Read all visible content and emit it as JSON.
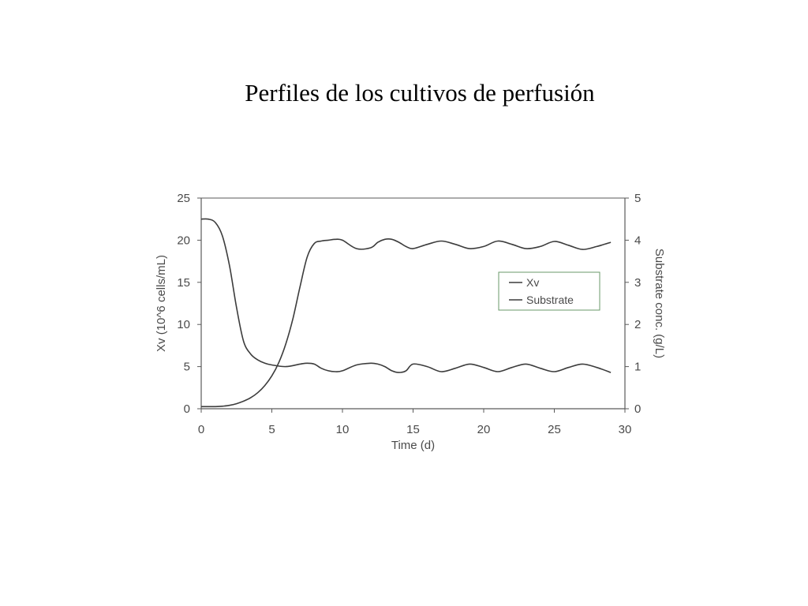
{
  "slide": {
    "title": "Perfiles de los cultivos de perfusión"
  },
  "colors": {
    "axis": "#5a5a5a",
    "series": "#3c3c3c",
    "text": "#4a4a4a",
    "legend_border": "#6a9a6a"
  },
  "chart_data": {
    "type": "line",
    "xlabel": "Time (d)",
    "ylabel_left": "Xv (10^6 cells/mL)",
    "ylabel_right": "Substrate conc. (g/L)",
    "xlim": [
      0,
      30
    ],
    "ylim_left": [
      0,
      25
    ],
    "ylim_right": [
      0,
      5
    ],
    "x_ticks": [
      "0",
      "5",
      "10",
      "15",
      "20",
      "25",
      "30"
    ],
    "y_left_ticks": [
      "0",
      "5",
      "10",
      "15",
      "20",
      "25"
    ],
    "y_right_ticks": [
      "0",
      "1",
      "2",
      "3",
      "4",
      "5"
    ],
    "grid": false,
    "legend_position": "upper-right",
    "series": [
      {
        "name": "Xv",
        "axis": "left",
        "x": [
          0,
          0.5,
          1,
          1.5,
          2,
          2.5,
          3,
          3.5,
          4,
          4.5,
          5,
          6,
          7,
          7.5,
          8,
          8.5,
          9,
          9.5,
          10,
          11,
          12,
          12.5,
          13,
          13.5,
          14,
          14.5,
          15,
          16,
          17,
          18,
          19,
          20,
          21,
          22,
          23,
          24,
          25,
          26,
          27,
          28,
          29
        ],
        "values": [
          22.5,
          22.5,
          22.1,
          20.5,
          17.0,
          12.0,
          8.0,
          6.5,
          5.8,
          5.4,
          5.2,
          5.0,
          5.3,
          5.4,
          5.3,
          4.8,
          4.5,
          4.4,
          4.5,
          5.2,
          5.4,
          5.3,
          5.0,
          4.5,
          4.3,
          4.5,
          5.3,
          5.0,
          4.4,
          4.8,
          5.3,
          4.9,
          4.4,
          4.9,
          5.3,
          4.8,
          4.4,
          4.9,
          5.3,
          4.9,
          4.3
        ]
      },
      {
        "name": "Substrate",
        "axis": "right",
        "x": [
          0,
          0.5,
          1,
          1.5,
          2,
          2.5,
          3,
          3.5,
          4,
          4.5,
          5,
          5.5,
          6,
          6.5,
          7,
          7.5,
          8,
          8.5,
          9,
          9.5,
          10,
          11,
          12,
          12.5,
          13,
          13.5,
          14,
          14.5,
          15,
          16,
          17,
          18,
          19,
          20,
          21,
          22,
          23,
          24,
          25,
          26,
          27,
          28,
          29
        ],
        "values": [
          0.05,
          0.05,
          0.05,
          0.06,
          0.08,
          0.12,
          0.18,
          0.26,
          0.38,
          0.55,
          0.78,
          1.1,
          1.55,
          2.15,
          2.9,
          3.6,
          3.92,
          3.98,
          4.0,
          4.02,
          4.0,
          3.8,
          3.82,
          3.95,
          4.02,
          4.02,
          3.95,
          3.85,
          3.8,
          3.9,
          3.98,
          3.9,
          3.8,
          3.85,
          3.98,
          3.9,
          3.8,
          3.85,
          3.97,
          3.88,
          3.78,
          3.85,
          3.95
        ]
      }
    ]
  }
}
